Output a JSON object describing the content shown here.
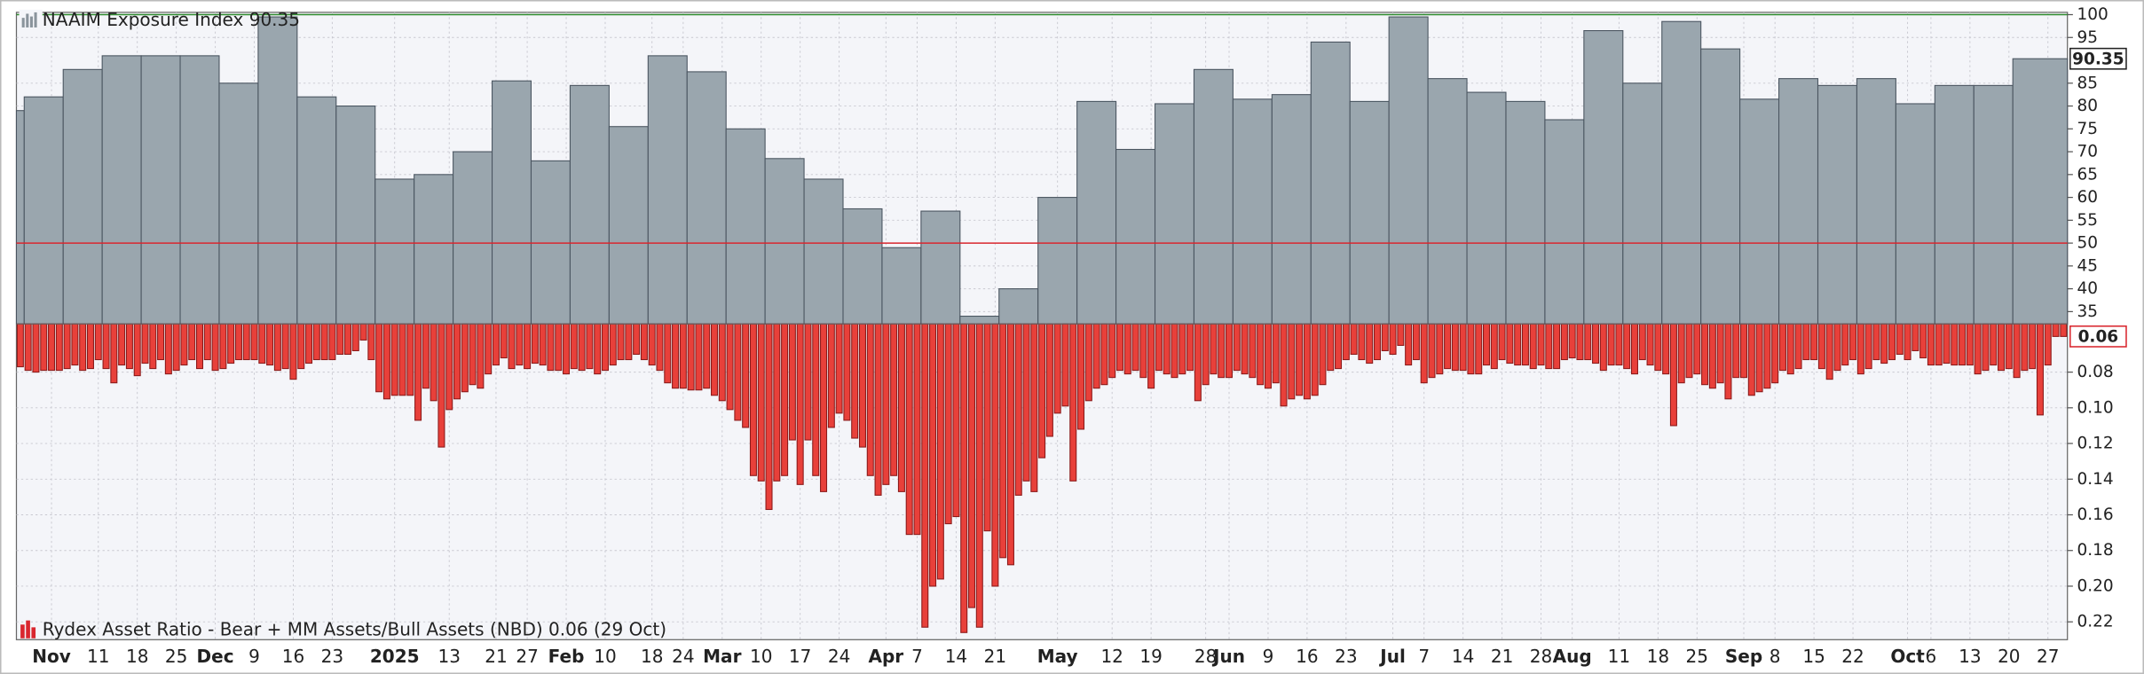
{
  "chart_data": [
    {
      "type": "bar",
      "series": [
        {
          "name": "NAAIM Exposure Index",
          "color": "#9aa6ae",
          "values": [
            79,
            82,
            88,
            91,
            91,
            91,
            85,
            99.5,
            82,
            80,
            64,
            65,
            70,
            85.5,
            68,
            84.5,
            75.5,
            91,
            87.5,
            75,
            68.5,
            64,
            57.5,
            49,
            57,
            34,
            40,
            60,
            81,
            70.5,
            80.5,
            88,
            81.5,
            82.5,
            94,
            81,
            99.5,
            86,
            83,
            81,
            77,
            96.5,
            85,
            98.5,
            92.5,
            81.5,
            86,
            84.5,
            86,
            80.5,
            84.5,
            84.5,
            90.35
          ]
        }
      ],
      "ylim": [
        32.3,
        100.5
      ],
      "yticks": [
        35,
        40,
        45,
        50,
        55,
        60,
        65,
        70,
        75,
        80,
        85,
        95,
        100
      ],
      "reference_lines": [
        {
          "value": 50,
          "color": "#d9262e"
        },
        {
          "value": 100,
          "color": "#2e8b2e"
        }
      ],
      "grid": true
    },
    {
      "type": "bar",
      "series": [
        {
          "name": "Rydex Asset Ratio - Bear + MM Assets/Bull Assets (NBD)",
          "color": "#e8403a",
          "values": [
            0.077,
            0.079,
            0.08,
            0.079,
            0.079,
            0.079,
            0.078,
            0.076,
            0.079,
            0.078,
            0.073,
            0.078,
            0.086,
            0.076,
            0.078,
            0.082,
            0.075,
            0.078,
            0.073,
            0.081,
            0.079,
            0.076,
            0.073,
            0.078,
            0.073,
            0.079,
            0.078,
            0.075,
            0.073,
            0.073,
            0.073,
            0.075,
            0.076,
            0.079,
            0.078,
            0.084,
            0.078,
            0.075,
            0.073,
            0.073,
            0.073,
            0.07,
            0.07,
            0.068,
            0.062,
            0.073,
            0.091,
            0.095,
            0.093,
            0.093,
            0.093,
            0.107,
            0.089,
            0.096,
            0.122,
            0.101,
            0.095,
            0.091,
            0.087,
            0.089,
            0.081,
            0.076,
            0.072,
            0.078,
            0.076,
            0.078,
            0.075,
            0.076,
            0.079,
            0.079,
            0.081,
            0.078,
            0.079,
            0.078,
            0.081,
            0.079,
            0.076,
            0.073,
            0.073,
            0.07,
            0.073,
            0.076,
            0.079,
            0.086,
            0.089,
            0.089,
            0.09,
            0.09,
            0.089,
            0.093,
            0.096,
            0.101,
            0.107,
            0.111,
            0.138,
            0.141,
            0.157,
            0.141,
            0.138,
            0.118,
            0.143,
            0.118,
            0.138,
            0.147,
            0.111,
            0.103,
            0.107,
            0.117,
            0.122,
            0.138,
            0.149,
            0.143,
            0.138,
            0.147,
            0.171,
            0.171,
            0.223,
            0.2,
            0.196,
            0.165,
            0.161,
            0.226,
            0.212,
            0.223,
            0.169,
            0.2,
            0.184,
            0.188,
            0.149,
            0.141,
            0.147,
            0.128,
            0.116,
            0.103,
            0.099,
            0.141,
            0.112,
            0.096,
            0.089,
            0.087,
            0.083,
            0.079,
            0.081,
            0.079,
            0.083,
            0.089,
            0.079,
            0.081,
            0.083,
            0.081,
            0.079,
            0.096,
            0.087,
            0.081,
            0.083,
            0.083,
            0.079,
            0.081,
            0.083,
            0.087,
            0.089,
            0.086,
            0.099,
            0.095,
            0.093,
            0.095,
            0.093,
            0.087,
            0.079,
            0.078,
            0.073,
            0.07,
            0.073,
            0.075,
            0.073,
            0.068,
            0.07,
            0.065,
            0.076,
            0.073,
            0.086,
            0.083,
            0.081,
            0.078,
            0.079,
            0.079,
            0.081,
            0.081,
            0.076,
            0.078,
            0.073,
            0.075,
            0.076,
            0.076,
            0.078,
            0.076,
            0.078,
            0.078,
            0.073,
            0.072,
            0.073,
            0.073,
            0.075,
            0.079,
            0.076,
            0.076,
            0.078,
            0.081,
            0.073,
            0.076,
            0.079,
            0.081,
            0.11,
            0.086,
            0.083,
            0.081,
            0.087,
            0.089,
            0.086,
            0.095,
            0.083,
            0.083,
            0.093,
            0.091,
            0.089,
            0.086,
            0.079,
            0.081,
            0.078,
            0.073,
            0.073,
            0.078,
            0.084,
            0.079,
            0.076,
            0.073,
            0.081,
            0.078,
            0.073,
            0.075,
            0.073,
            0.07,
            0.073,
            0.068,
            0.072,
            0.076,
            0.076,
            0.075,
            0.076,
            0.076,
            0.076,
            0.081,
            0.079,
            0.076,
            0.079,
            0.078,
            0.083,
            0.079,
            0.078,
            0.104,
            0.076,
            0.06,
            0.06
          ]
        }
      ],
      "value_date_label": "(29 Oct)",
      "categories": [
        null,
        null,
        null,
        null,
        "Nov",
        null,
        null,
        null,
        null,
        null,
        "11",
        null,
        null,
        null,
        null,
        "18",
        null,
        null,
        null,
        null,
        "25",
        null,
        null,
        null,
        null,
        "Dec",
        null,
        null,
        null,
        null,
        "9",
        null,
        null,
        null,
        null,
        "16",
        null,
        null,
        null,
        null,
        "23",
        null,
        null,
        null,
        null,
        null,
        null,
        null,
        "2025",
        null,
        null,
        null,
        null,
        null,
        null,
        "13",
        null,
        null,
        null,
        null,
        null,
        "21",
        null,
        null,
        null,
        "27",
        null,
        null,
        null,
        null,
        "Feb",
        null,
        null,
        null,
        null,
        "10",
        null,
        null,
        null,
        null,
        null,
        "18",
        null,
        null,
        null,
        "24",
        null,
        null,
        null,
        null,
        "Mar",
        null,
        null,
        null,
        null,
        "10",
        null,
        null,
        null,
        null,
        "17",
        null,
        null,
        null,
        null,
        "24",
        null,
        null,
        null,
        null,
        null,
        "Apr",
        null,
        null,
        null,
        "7",
        null,
        null,
        null,
        null,
        "14",
        null,
        null,
        null,
        null,
        "21",
        null,
        null,
        null,
        null,
        null,
        null,
        null,
        "May",
        null,
        null,
        null,
        null,
        null,
        null,
        "12",
        null,
        null,
        null,
        null,
        "19",
        null,
        null,
        null,
        null,
        null,
        null,
        "28",
        null,
        null,
        "Jun",
        null,
        null,
        null,
        null,
        "9",
        null,
        null,
        null,
        null,
        "16",
        null,
        null,
        null,
        null,
        "23",
        null,
        null,
        null,
        null,
        null,
        "Jul",
        null,
        null,
        null,
        "7",
        null,
        null,
        null,
        null,
        "14",
        null,
        null,
        null,
        null,
        "21",
        null,
        null,
        null,
        null,
        "28",
        null,
        null,
        null,
        "Aug",
        null,
        null,
        null,
        null,
        null,
        "11",
        null,
        null,
        null,
        null,
        "18",
        null,
        null,
        null,
        null,
        "25",
        null,
        null,
        null,
        null,
        null,
        "Sep",
        null,
        null,
        null,
        "8",
        null,
        null,
        null,
        null,
        "15",
        null,
        null,
        null,
        null,
        "22",
        null,
        null,
        null,
        null,
        null,
        null,
        "Oct",
        null,
        null,
        "6",
        null,
        null,
        null,
        null,
        "13",
        null,
        null,
        null,
        null,
        "20",
        null,
        null,
        null,
        null,
        "27",
        null,
        null
      ],
      "ylim": [
        0.053,
        0.23
      ],
      "inverted": true,
      "yticks": [
        0.08,
        {
          "value": 0.1,
          "label": "0.10"
        },
        0.12,
        0.14,
        0.16,
        0.18,
        {
          "value": 0.2,
          "label": "0.20"
        },
        0.22
      ],
      "grid": true
    }
  ]
}
